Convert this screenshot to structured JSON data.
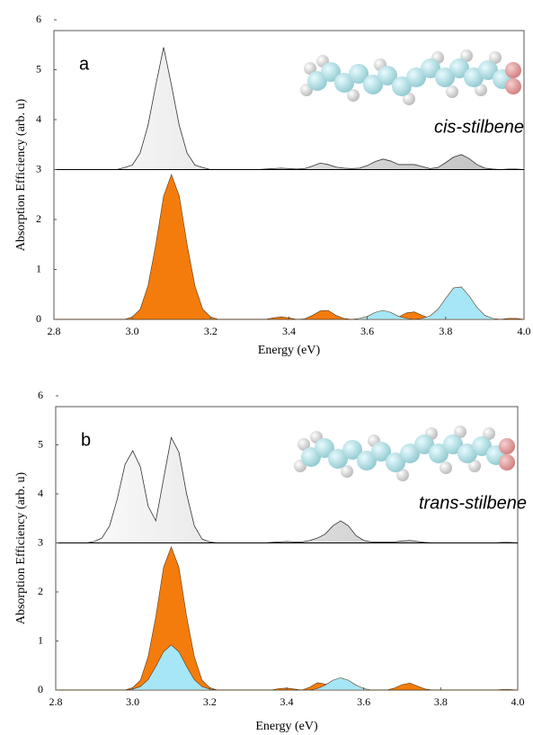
{
  "chart_data": [
    {
      "type": "area",
      "panel_label": "a",
      "annotation": "cis-stilbene",
      "xlabel": "Energy (eV)",
      "ylabel": "Absorption Efficiency (arb. u)",
      "xlim": [
        2.8,
        4.0
      ],
      "xticks": [
        2.8,
        {
          "value": 3,
          "label": "3.0"
        },
        3.2,
        3.4,
        3.6,
        3.8,
        {
          "value": 4,
          "label": "4.0"
        }
      ],
      "ylim": [
        0,
        6
      ],
      "yticks": [
        0,
        1,
        2,
        3,
        4,
        5,
        6
      ],
      "x": [
        2.8,
        2.82,
        2.84,
        2.86,
        2.88,
        2.9,
        2.92,
        2.94,
        2.96,
        2.98,
        3.0,
        3.02,
        3.04,
        3.06,
        3.08,
        3.1,
        3.12,
        3.14,
        3.16,
        3.18,
        3.2,
        3.22,
        3.24,
        3.26,
        3.28,
        3.3,
        3.32,
        3.34,
        3.36,
        3.38,
        3.4,
        3.42,
        3.44,
        3.46,
        3.48,
        3.5,
        3.52,
        3.54,
        3.56,
        3.58,
        3.6,
        3.62,
        3.64,
        3.66,
        3.68,
        3.7,
        3.72,
        3.74,
        3.76,
        3.78,
        3.8,
        3.82,
        3.84,
        3.86,
        3.88,
        3.9,
        3.92,
        3.94,
        3.96,
        3.98,
        4.0
      ],
      "series": [
        {
          "color": "#d4d4d4",
          "baseline": 3,
          "values": [
            3,
            3,
            3,
            3,
            3,
            3,
            3,
            3,
            3,
            3.04,
            3.09,
            3.33,
            3.88,
            4.69,
            5.45,
            4.69,
            3.88,
            3.33,
            3.09,
            3.04,
            3,
            3,
            3,
            3,
            3,
            3,
            3,
            3.01,
            3.02,
            3.03,
            3.02,
            3.01,
            3.02,
            3.07,
            3.13,
            3.1,
            3.05,
            3.03,
            3.02,
            3.03,
            3.08,
            3.16,
            3.21,
            3.17,
            3.1,
            3.1,
            3.1,
            3.06,
            3.02,
            3.04,
            3.14,
            3.25,
            3.3,
            3.22,
            3.1,
            3.03,
            3.01,
            3,
            3.01,
            3.01,
            3
          ]
        },
        {
          "color": "#f47c0c",
          "values": [
            0,
            0,
            0,
            0,
            0,
            0,
            0,
            0,
            0,
            0,
            0.05,
            0.2,
            0.67,
            1.5,
            2.47,
            2.9,
            2.47,
            1.5,
            0.67,
            0.2,
            0.05,
            0,
            0,
            0,
            0,
            0,
            0,
            0,
            0.03,
            0.05,
            0.03,
            0,
            0.01,
            0.08,
            0.17,
            0.18,
            0.08,
            0.02,
            0,
            0,
            0,
            0,
            0,
            0.01,
            0.05,
            0.13,
            0.15,
            0.08,
            0.02,
            0,
            0,
            0,
            0,
            0,
            0,
            0,
            0,
            0,
            0.02,
            0.02,
            0
          ]
        },
        {
          "color": "#a6e6f7",
          "values": [
            0,
            0,
            0,
            0,
            0,
            0,
            0,
            0,
            0,
            0,
            0,
            0,
            0,
            0,
            0,
            0,
            0,
            0,
            0,
            0,
            0,
            0,
            0,
            0,
            0,
            0,
            0,
            0,
            0,
            0,
            0,
            0,
            0,
            0,
            0,
            0,
            0,
            0,
            0,
            0.02,
            0.06,
            0.14,
            0.18,
            0.14,
            0.06,
            0.02,
            0,
            0.02,
            0.07,
            0.2,
            0.42,
            0.63,
            0.65,
            0.47,
            0.24,
            0.08,
            0.02,
            0,
            0,
            0,
            0
          ]
        }
      ]
    },
    {
      "type": "area",
      "panel_label": "b",
      "annotation": "trans-stilbene",
      "xlabel": "Energy (eV)",
      "ylabel": "Absorption Efficiency (arb. u)",
      "xlim": [
        2.8,
        4.0
      ],
      "xticks": [
        2.8,
        {
          "value": 3,
          "label": "3.0"
        },
        3.2,
        3.4,
        3.6,
        3.8,
        {
          "value": 4,
          "label": "4.0"
        }
      ],
      "ylim": [
        0,
        6
      ],
      "yticks": [
        0,
        1,
        2,
        3,
        4,
        5,
        6
      ],
      "x": [
        2.8,
        2.82,
        2.84,
        2.86,
        2.88,
        2.9,
        2.92,
        2.94,
        2.96,
        2.98,
        3.0,
        3.02,
        3.04,
        3.06,
        3.08,
        3.1,
        3.12,
        3.14,
        3.16,
        3.18,
        3.2,
        3.22,
        3.24,
        3.26,
        3.28,
        3.3,
        3.32,
        3.34,
        3.36,
        3.38,
        3.4,
        3.42,
        3.44,
        3.46,
        3.48,
        3.5,
        3.52,
        3.54,
        3.56,
        3.58,
        3.6,
        3.62,
        3.64,
        3.66,
        3.68,
        3.7,
        3.72,
        3.74,
        3.76,
        3.78,
        3.8,
        3.82,
        3.84,
        3.86,
        3.88,
        3.9,
        3.92,
        3.94,
        3.96,
        3.98,
        4.0
      ],
      "series": [
        {
          "color": "#d4d4d4",
          "baseline": 3,
          "values": [
            3,
            3,
            3,
            3,
            3,
            3.03,
            3.1,
            3.35,
            3.9,
            4.6,
            4.88,
            4.55,
            3.75,
            3.45,
            4.3,
            5.15,
            4.85,
            4.0,
            3.35,
            3.08,
            3.02,
            3,
            3,
            3,
            3,
            3,
            3,
            3,
            3.01,
            3.02,
            3.03,
            3.02,
            3.02,
            3.05,
            3.1,
            3.18,
            3.35,
            3.45,
            3.35,
            3.15,
            3.05,
            3.02,
            3.02,
            3.02,
            3.02,
            3.04,
            3.05,
            3.03,
            3.01,
            3,
            3,
            3,
            3,
            3,
            3,
            3,
            3,
            3,
            3.01,
            3.01,
            3
          ]
        },
        {
          "color": "#f47c0c",
          "values": [
            0,
            0,
            0,
            0,
            0,
            0,
            0,
            0,
            0,
            0,
            0.05,
            0.2,
            0.68,
            1.5,
            2.5,
            2.92,
            2.5,
            1.5,
            0.68,
            0.2,
            0.05,
            0,
            0,
            0,
            0,
            0,
            0,
            0,
            0,
            0.03,
            0.04,
            0.02,
            0,
            0.06,
            0.15,
            0.12,
            0.05,
            0.01,
            0,
            0,
            0,
            0,
            0,
            0,
            0.04,
            0.11,
            0.14,
            0.08,
            0.02,
            0,
            0,
            0,
            0,
            0,
            0,
            0,
            0,
            0,
            0.01,
            0.01,
            0
          ]
        },
        {
          "color": "#a6e6f7",
          "values": [
            0,
            0,
            0,
            0,
            0,
            0,
            0,
            0,
            0,
            0,
            0.02,
            0.07,
            0.21,
            0.48,
            0.78,
            0.92,
            0.78,
            0.48,
            0.21,
            0.07,
            0.02,
            0,
            0,
            0,
            0,
            0,
            0,
            0,
            0,
            0,
            0,
            0,
            0,
            0,
            0.03,
            0.1,
            0.2,
            0.25,
            0.2,
            0.1,
            0.03,
            0,
            0,
            0,
            0,
            0,
            0,
            0,
            0,
            0,
            0,
            0,
            0,
            0,
            0,
            0,
            0,
            0,
            0,
            0,
            0
          ]
        }
      ]
    }
  ]
}
